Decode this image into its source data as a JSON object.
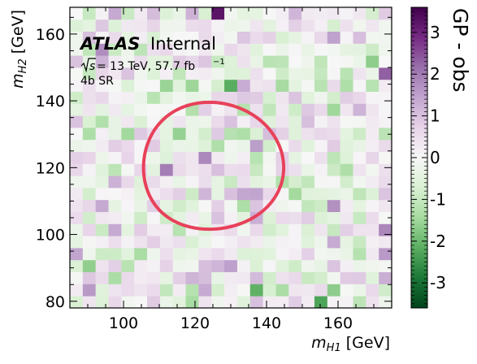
{
  "chart_data": {
    "type": "heatmap",
    "xlabel_main": "m",
    "xlabel_sub": "H1",
    "xlabel_unit": " [GeV]",
    "ylabel_main": "m",
    "ylabel_sub": "H2",
    "ylabel_unit": " [GeV]",
    "xlim": [
      85,
      175
    ],
    "ylim": [
      78,
      168
    ],
    "xticks": [
      100,
      120,
      140,
      160
    ],
    "yticks": [
      80,
      100,
      120,
      140,
      160
    ],
    "grid_size": [
      25,
      25
    ],
    "colorbar": {
      "title": "GP - obs",
      "range": [
        -3.6,
        3.6
      ],
      "ticks": [
        -3,
        -2,
        -1,
        0,
        1,
        2,
        3
      ],
      "tick_labels": [
        "-3",
        "-2",
        "-1",
        "0",
        "1",
        "2",
        "3"
      ],
      "colors": [
        "#00441b",
        "#1b7837",
        "#5aae61",
        "#a6dba0",
        "#d9f0d3",
        "#f7f7f7",
        "#e7d4e8",
        "#c2a5cf",
        "#9970ab",
        "#762a83",
        "#40004b"
      ]
    },
    "annotations": {
      "atlas": "ATLAS",
      "internal": "Internal",
      "energy_prefix": "s",
      "energy_text": " = 13 TeV, 57.7 fb",
      "energy_exp": "−1",
      "region": "4b SR"
    },
    "signal_region_contour": {
      "color": "#e8415a",
      "center": [
        124,
        120
      ],
      "description": "signal region"
    },
    "seed": 20240
  }
}
